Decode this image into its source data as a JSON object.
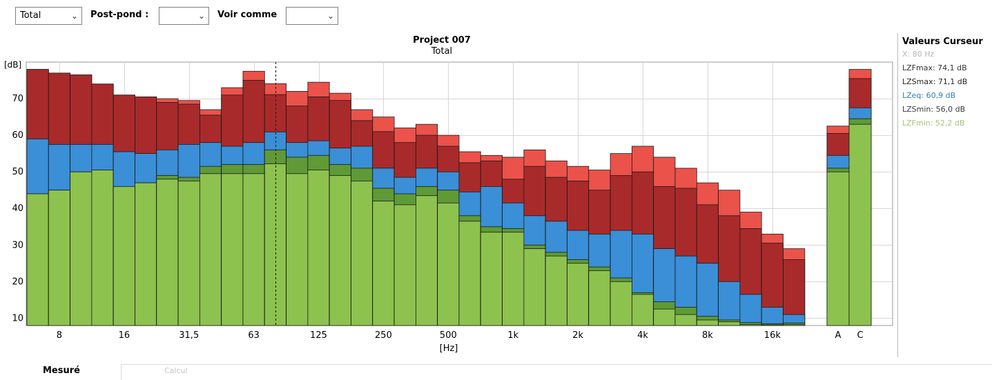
{
  "toolbar": {
    "view_select": "Total",
    "postpond_label": "Post-pond :",
    "postpond_value": "",
    "voircomme_label": "Voir comme",
    "voircomme_value": ""
  },
  "cursor_panel": {
    "title": "Valeurs Curseur",
    "items": [
      {
        "text": "X: 80 Hz",
        "color": "#b5b5b5"
      },
      {
        "text": "LZFmax: 74,1 dB",
        "color": "#333333"
      },
      {
        "text": "LZSmax: 71,1 dB",
        "color": "#222222"
      },
      {
        "text": "LZeq: 60,9 dB",
        "color": "#2e7cbf"
      },
      {
        "text": "LZSmin: 56,0 dB",
        "color": "#3a3a3a"
      },
      {
        "text": "LZFmin: 52,2 dB",
        "color": "#a3c27a"
      }
    ]
  },
  "tabs": {
    "active": "Mesuré",
    "other": "Calcul"
  },
  "colors": {
    "LZFmax": "#eb524a",
    "LZSmax": "#a92a2a",
    "LZeq": "#3a8fd7",
    "LZSmin": "#5f9a36",
    "LZFmin": "#8dc24e"
  },
  "chart_data": {
    "type": "bar",
    "title": "Project 007",
    "subtitle": "Total",
    "ylabel": "[dB]",
    "xlabel": "[Hz]",
    "ylim": [
      8,
      80
    ],
    "yticks": [
      10,
      20,
      30,
      40,
      50,
      60,
      70
    ],
    "categories": [
      "6,3",
      "8",
      "10",
      "12,5",
      "16",
      "20",
      "25",
      "31,5",
      "40",
      "50",
      "63",
      "80",
      "100",
      "125",
      "160",
      "200",
      "250",
      "315",
      "400",
      "500",
      "630",
      "800",
      "1k",
      "1,25k",
      "1,6k",
      "2k",
      "2,5k",
      "3,15k",
      "4k",
      "5k",
      "6,3k",
      "8k",
      "10k",
      "12,5k",
      "16k",
      "20k"
    ],
    "xtick_labels": [
      "8",
      "16",
      "31,5",
      "63",
      "125",
      "250",
      "500",
      "1k",
      "2k",
      "4k",
      "8k",
      "16k"
    ],
    "summary_categories": [
      "A",
      "C"
    ],
    "cursor_x": "80",
    "series": [
      {
        "name": "LZFmax",
        "values": [
          78,
          77,
          76.5,
          74,
          71,
          70.5,
          70,
          69.5,
          67,
          73,
          77.5,
          74.1,
          72,
          74.5,
          71.5,
          67,
          65,
          62,
          63,
          60,
          55.5,
          54.5,
          54,
          56,
          53,
          51.5,
          50.5,
          55,
          57,
          54,
          51,
          47,
          45,
          39,
          33,
          29
        ]
      },
      {
        "name": "LZSmax",
        "values": [
          78,
          77,
          76.5,
          74,
          71,
          70.5,
          69,
          68.5,
          65.5,
          71,
          75,
          71.1,
          68,
          70.5,
          69.5,
          64,
          61,
          58,
          60,
          57,
          52.5,
          53,
          48,
          51.5,
          48.5,
          47.5,
          45,
          49,
          50,
          46,
          45.5,
          41,
          38,
          34.5,
          30.5,
          26
        ]
      },
      {
        "name": "LZeq",
        "values": [
          59,
          57.5,
          57.5,
          57.5,
          55.5,
          55,
          56,
          57.5,
          58,
          57,
          58,
          60.9,
          58,
          58.5,
          56.5,
          57,
          51,
          48.5,
          51,
          50,
          44.5,
          46,
          41.5,
          38,
          36.5,
          34,
          33,
          34,
          33,
          29,
          27,
          25,
          20,
          16.5,
          13,
          11
        ]
      },
      {
        "name": "LZSmin",
        "values": [
          44,
          45,
          50,
          50.5,
          46,
          47,
          49,
          48.5,
          51.5,
          52,
          52,
          56,
          54,
          54.5,
          52,
          51,
          45.5,
          44,
          46,
          45,
          38,
          35,
          34.5,
          30,
          28,
          26,
          24,
          21,
          17,
          14.5,
          13,
          10.5,
          9.5,
          8.8,
          8.5,
          8.7
        ]
      },
      {
        "name": "LZFmin",
        "values": [
          44,
          45,
          50,
          50.5,
          46,
          47,
          48,
          47.5,
          49.5,
          49.5,
          49.5,
          52.2,
          49.5,
          50.5,
          49,
          47.5,
          42,
          41,
          43.5,
          41.5,
          36.5,
          33.5,
          33.5,
          29,
          27,
          25,
          23,
          20,
          16.5,
          12.5,
          11,
          9.5,
          9,
          8.3,
          8.2,
          8.3
        ]
      }
    ],
    "summary_series": [
      {
        "name": "LZFmax",
        "values": [
          62.5,
          78
        ]
      },
      {
        "name": "LZSmax",
        "values": [
          60.5,
          75.5
        ]
      },
      {
        "name": "LZeq",
        "values": [
          54.5,
          67.5
        ]
      },
      {
        "name": "LZSmin",
        "values": [
          51,
          64.5
        ]
      },
      {
        "name": "LZFmin",
        "values": [
          50,
          63
        ]
      }
    ]
  }
}
